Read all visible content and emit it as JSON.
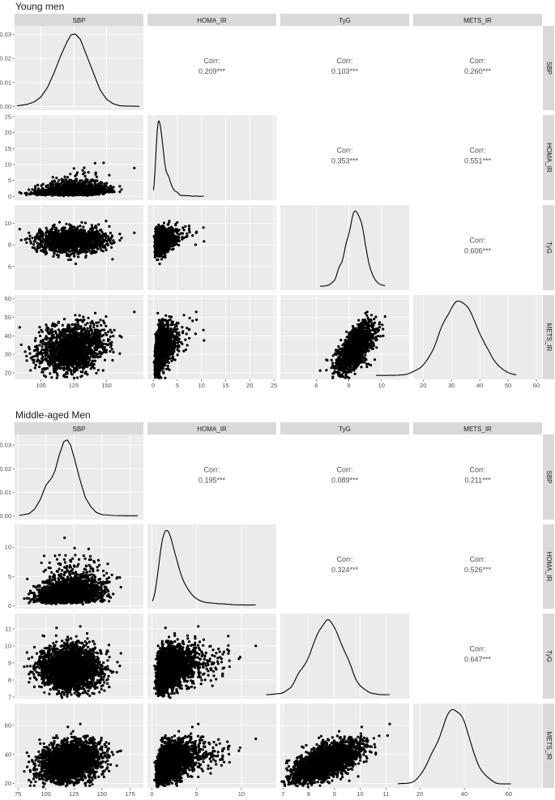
{
  "colors": {
    "panel_bg": "#ebebeb",
    "grid": "#ffffff",
    "strip_bg": "#d9d9d9",
    "point": "#000000",
    "line": "#000000",
    "corr_text": "#4d4d4d",
    "axis_text": "#4d4d4d",
    "strip_text": "#1a1a1a"
  },
  "chart_data": [
    {
      "type": "scatter",
      "title": "Young men",
      "variables": [
        "SBP",
        "HOMA_IR",
        "TyG",
        "METS_IR"
      ],
      "variable_ranges": {
        "SBP": [
          80,
          178
        ],
        "HOMA_IR": [
          -1.2,
          25.5
        ],
        "TyG": [
          3.8,
          11.7
        ],
        "METS_IR": [
          16.5,
          62
        ]
      },
      "x_ticks": {
        "SBP": [
          100,
          125,
          150
        ],
        "HOMA_IR": [
          0,
          5,
          10,
          15,
          20,
          25
        ],
        "TyG": [
          6,
          8,
          10
        ],
        "METS_IR": [
          20,
          30,
          40,
          50,
          60
        ]
      },
      "y_ticks": {
        "SBP": [
          "0.00",
          "0.01",
          "0.02",
          "0.03"
        ],
        "HOMA_IR": [
          0,
          5,
          10,
          15,
          20,
          25
        ],
        "TyG": [
          6,
          8,
          10
        ],
        "METS_IR": [
          20,
          30,
          40,
          50,
          60
        ]
      },
      "density_ylim": [
        -0.0015,
        0.0335
      ],
      "sbp_density": {
        "x": [
          82,
          90,
          95,
          100,
          105,
          110,
          115,
          120,
          123,
          126,
          130,
          135,
          140,
          145,
          150,
          155,
          160,
          165,
          170,
          175
        ],
        "y": [
          0.0003,
          0.001,
          0.002,
          0.004,
          0.008,
          0.014,
          0.021,
          0.027,
          0.0298,
          0.0302,
          0.028,
          0.021,
          0.014,
          0.007,
          0.003,
          0.0012,
          0.0004,
          0.0002,
          0.0002,
          0.0001
        ]
      },
      "correlations": [
        {
          "pair": [
            "SBP",
            "HOMA_IR"
          ],
          "label": "Corr:",
          "value": "0.209***"
        },
        {
          "pair": [
            "SBP",
            "TyG"
          ],
          "label": "Corr:",
          "value": "0.103***"
        },
        {
          "pair": [
            "SBP",
            "METS_IR"
          ],
          "label": "Corr:",
          "value": "0.260***"
        },
        {
          "pair": [
            "HOMA_IR",
            "TyG"
          ],
          "label": "Corr:",
          "value": "0.353***"
        },
        {
          "pair": [
            "HOMA_IR",
            "METS_IR"
          ],
          "label": "Corr:",
          "value": "0.551***"
        },
        {
          "pair": [
            "TyG",
            "METS_IR"
          ],
          "label": "Corr:",
          "value": "0.606***"
        }
      ],
      "grid": true
    },
    {
      "type": "scatter",
      "title": "Middle-aged Men",
      "variables": [
        "SBP",
        "HOMA_IR",
        "TyG",
        "METS_IR"
      ],
      "variable_ranges": {
        "SBP": [
          72,
          187
        ],
        "HOMA_IR": [
          -0.5,
          13.9
        ],
        "TyG": [
          6.9,
          11.9
        ],
        "METS_IR": [
          17,
          75
        ]
      },
      "x_ticks": {
        "SBP": [
          75,
          100,
          125,
          150,
          175
        ],
        "HOMA_IR": [
          0,
          5,
          10
        ],
        "TyG": [
          7,
          8,
          9,
          10,
          11
        ],
        "METS_IR": [
          20,
          40,
          60
        ]
      },
      "y_ticks": {
        "SBP": [
          "0.00",
          "0.01",
          "0.02",
          "0.03"
        ],
        "HOMA_IR": [
          0,
          5,
          10
        ],
        "TyG": [
          7,
          8,
          9,
          10,
          11
        ],
        "METS_IR": [
          20,
          40,
          60
        ]
      },
      "density_ylim": [
        -0.0015,
        0.0345
      ],
      "sbp_density": {
        "x": [
          76,
          85,
          90,
          95,
          100,
          105,
          108,
          112,
          116,
          119,
          122,
          125,
          130,
          135,
          140,
          145,
          150,
          160,
          170,
          182
        ],
        "y": [
          0.0002,
          0.001,
          0.003,
          0.007,
          0.013,
          0.016,
          0.019,
          0.026,
          0.0315,
          0.0322,
          0.03,
          0.025,
          0.016,
          0.008,
          0.004,
          0.0015,
          0.0006,
          0.0002,
          0.0001,
          0.0001
        ]
      },
      "correlations": [
        {
          "pair": [
            "SBP",
            "HOMA_IR"
          ],
          "label": "Corr:",
          "value": "0.195***"
        },
        {
          "pair": [
            "SBP",
            "TyG"
          ],
          "label": "Corr:",
          "value": "0.089***"
        },
        {
          "pair": [
            "SBP",
            "METS_IR"
          ],
          "label": "Corr:",
          "value": "0.211***"
        },
        {
          "pair": [
            "HOMA_IR",
            "TyG"
          ],
          "label": "Corr:",
          "value": "0.324***"
        },
        {
          "pair": [
            "HOMA_IR",
            "METS_IR"
          ],
          "label": "Corr:",
          "value": "0.526***"
        },
        {
          "pair": [
            "TyG",
            "METS_IR"
          ],
          "label": "Corr:",
          "value": "0.647***"
        }
      ],
      "grid": true
    }
  ]
}
